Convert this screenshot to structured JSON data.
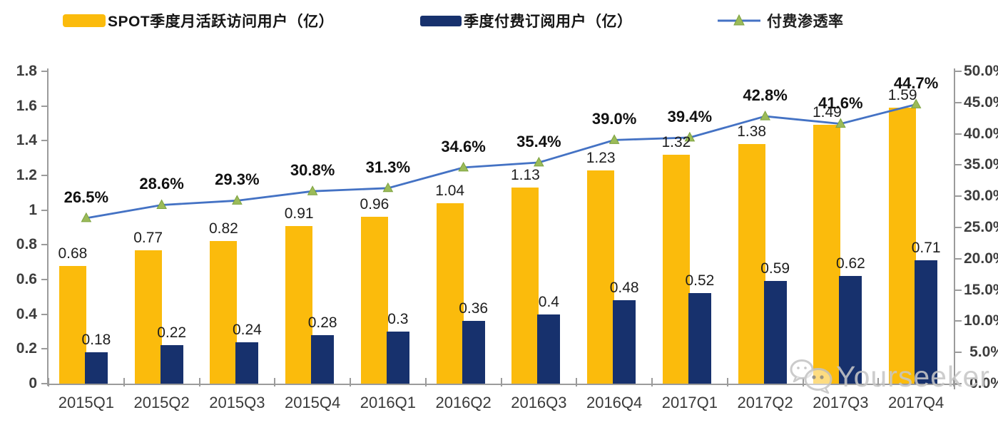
{
  "legend": {
    "items": [
      {
        "label": "SPOT季度月活跃访问用户（亿）",
        "color": "#FBBB0C",
        "type": "bar"
      },
      {
        "label": "季度付费订阅用户（亿）",
        "color": "#17316D",
        "type": "bar"
      },
      {
        "label": "付费渗透率",
        "color": "#4472C4",
        "marker_color": "#9BBB59",
        "type": "line"
      }
    ]
  },
  "chart_data": {
    "type": "bar",
    "subtype": "combo-bar-line",
    "categories": [
      "2015Q1",
      "2015Q2",
      "2015Q3",
      "2015Q4",
      "2016Q1",
      "2016Q2",
      "2016Q3",
      "2016Q4",
      "2017Q1",
      "2017Q2",
      "2017Q3",
      "2017Q4"
    ],
    "series": [
      {
        "name": "SPOT季度月活跃访问用户（亿）",
        "type": "bar",
        "axis": "left",
        "color": "#FBBB0C",
        "values": [
          0.68,
          0.77,
          0.82,
          0.91,
          0.96,
          1.04,
          1.13,
          1.23,
          1.32,
          1.38,
          1.49,
          1.59
        ],
        "labels": [
          "0.68",
          "0.77",
          "0.82",
          "0.91",
          "0.96",
          "1.04",
          "1.13",
          "1.23",
          "1.32",
          "1.38",
          "1.49",
          "1.59"
        ]
      },
      {
        "name": "季度付费订阅用户（亿）",
        "type": "bar",
        "axis": "left",
        "color": "#17316D",
        "values": [
          0.18,
          0.22,
          0.24,
          0.28,
          0.3,
          0.36,
          0.4,
          0.48,
          0.52,
          0.59,
          0.62,
          0.71
        ],
        "labels": [
          "0.18",
          "0.22",
          "0.24",
          "0.28",
          "0.3",
          "0.36",
          "0.4",
          "0.48",
          "0.52",
          "0.59",
          "0.62",
          "0.71"
        ]
      },
      {
        "name": "付费渗透率",
        "type": "line",
        "axis": "right",
        "color": "#4472C4",
        "marker": "triangle",
        "marker_color": "#9BBB59",
        "values": [
          26.5,
          28.6,
          29.3,
          30.8,
          31.3,
          34.6,
          35.4,
          39.0,
          39.4,
          42.8,
          41.6,
          44.7
        ],
        "labels": [
          "26.5%",
          "28.6%",
          "29.3%",
          "30.8%",
          "31.3%",
          "34.6%",
          "35.4%",
          "39.0%",
          "39.4%",
          "42.8%",
          "41.6%",
          "44.7%"
        ]
      }
    ],
    "left_axis": {
      "min": 0,
      "max": 1.8,
      "tick_step": 0.2,
      "tick_labels": [
        "0",
        "0.2",
        "0.4",
        "0.6",
        "0.8",
        "1",
        "1.2",
        "1.4",
        "1.6",
        "1.8"
      ]
    },
    "right_axis": {
      "min": 0,
      "max": 50,
      "tick_step": 5,
      "tick_labels": [
        "0.0%",
        "5.0%",
        "10.0%",
        "15.0%",
        "20.0%",
        "25.0%",
        "30.0%",
        "35.0%",
        "40.0%",
        "45.0%",
        "50.0%"
      ]
    },
    "grid": false,
    "legend_position": "top"
  },
  "watermark": {
    "text": "Yourseeker"
  }
}
